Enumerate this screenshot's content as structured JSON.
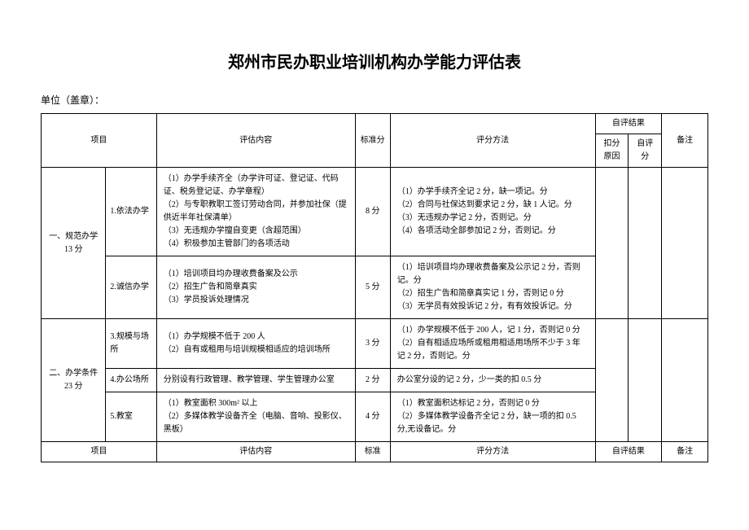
{
  "title": "郑州市民办职业培训机构办学能力评估表",
  "subtitle": "单位（盖章）：",
  "headers": {
    "project": "项目",
    "content": "评估内容",
    "score": "标准分",
    "method": "评分方法",
    "self_result": "自评结果",
    "reason": "扣分原因",
    "self_score": "自评分",
    "note": "备注"
  },
  "categories": [
    {
      "name": "一、规范办学 13 分",
      "rows": [
        {
          "item": "1.依法办学",
          "content": "（1）办学手续齐全（办学许可证、登记证、代码证、税务登记证、办学章程）\n（2）与专职教职工签订劳动合同，并参加社保（提供近半年社保清单）\n（3）无违规办学擅自变更（含超范围）\n（4）积极参加主管部门的各项活动",
          "score": "8 分",
          "method": "（1）办学手续齐全记 2 分，缺一项记。分\n（2）合同与社保达到要求记 2 分，缺 1 人记。分\n（3）无违规办学记 2 分，否则记。分\n（4）各项活动全部参加记 2 分，否则记。分"
        },
        {
          "item": "2.诚信办学",
          "content": "（1）培训项目均办理收费备案及公示\n（2）招生广告和简章真实\n（3）学员投诉处理情况",
          "score": "5 分",
          "method": "（1）培训项目均办理收费备案及公示记 2 分，否则记。分\n（2）招生广告和简章真实记 1 分，否则记 0 分\n（3）无学员有效投诉记 2 分，有有效投诉记。分"
        }
      ]
    },
    {
      "name": "二、办学条件 23 分",
      "rows": [
        {
          "item": "3.规模与场所",
          "content": "（1）办学规模不低于 200 人\n（2）自有或租用与培训规模相适应的培训场所",
          "score": "3 分",
          "method": "（1）办学规模不低于 200 人，记 1 分，否则记 0 分\n（2）自有相适应场所或租用相适用场所不少于 3 年记 2 分，否则记。分"
        },
        {
          "item": "4.办公场所",
          "content": "分别设有行政管理、教学管理、学生管理办公室",
          "score": "2 分",
          "method": "办公室分设的记 2 分，少一类的扣 0.5 分"
        },
        {
          "item": "5.教室",
          "content": "（1）教室面积 300m² 以上\n（2）多媒体教学设备齐全（电脑、音响、投影仪、黑板）",
          "score": "4 分",
          "method": "（1）教室面积达标记 2 分，否则记 0 分\n（2）多媒体教学设备齐全记 2 分，缺一项的扣 0.5 分,无设备记。分"
        }
      ]
    }
  ],
  "footer": {
    "project": "项目",
    "content": "评估内容",
    "score": "标准",
    "method": "评分方法",
    "self_result": "自评结果",
    "note": "备注"
  }
}
